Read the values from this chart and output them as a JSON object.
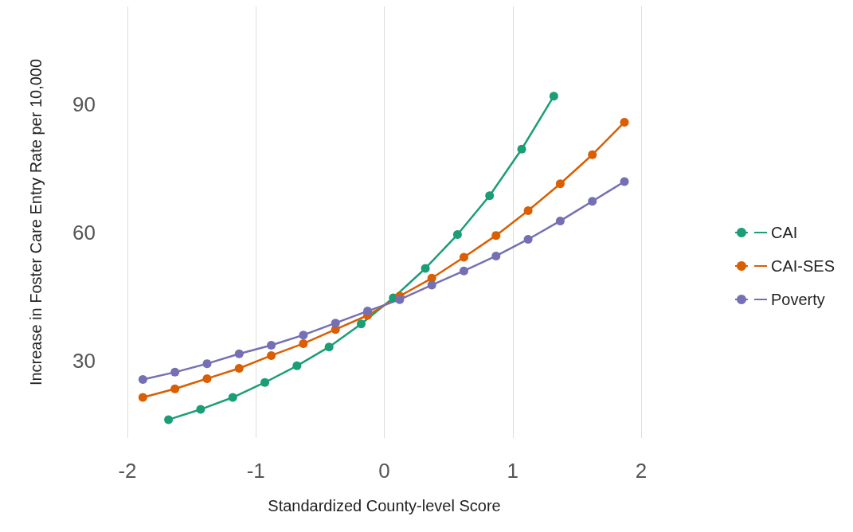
{
  "chart_data": {
    "type": "line",
    "xlabel": "Standardized County-level Score",
    "ylabel": "Increase in Foster Care Entry Rate per 10,000",
    "xlim": [
      -2,
      2
    ],
    "xticks": [
      -2,
      -1,
      0,
      1,
      2
    ],
    "ylim": [
      12,
      113
    ],
    "yticks": [
      30,
      60,
      90
    ],
    "grid": "x",
    "legend": "right",
    "marker": "circle",
    "line_style": "solid",
    "series": [
      {
        "name": "CAI",
        "color": "#1b9e77",
        "x": [
          -1.68,
          -1.43,
          -1.18,
          -0.93,
          -0.68,
          -0.43,
          -0.18,
          0.07,
          0.32,
          0.57,
          0.82,
          1.07,
          1.32
        ],
        "values": [
          16.3,
          18.7,
          21.5,
          25.0,
          28.9,
          33.3,
          38.7,
          44.8,
          51.7,
          59.6,
          68.7,
          79.6,
          92.0
        ]
      },
      {
        "name": "CAI-SES",
        "color": "#d95f02",
        "x": [
          -1.88,
          -1.63,
          -1.38,
          -1.13,
          -0.88,
          -0.63,
          -0.38,
          -0.13,
          0.12,
          0.37,
          0.62,
          0.87,
          1.12,
          1.37,
          1.62,
          1.87
        ],
        "values": [
          21.5,
          23.5,
          25.9,
          28.3,
          31.3,
          34.1,
          37.4,
          40.7,
          45.2,
          49.4,
          54.3,
          59.4,
          65.2,
          71.5,
          78.3,
          85.9
        ]
      },
      {
        "name": "Poverty",
        "color": "#7570b3",
        "x": [
          -1.88,
          -1.63,
          -1.38,
          -1.13,
          -0.88,
          -0.63,
          -0.38,
          -0.13,
          0.12,
          0.37,
          0.62,
          0.87,
          1.12,
          1.37,
          1.62,
          1.87
        ],
        "values": [
          25.7,
          27.4,
          29.4,
          31.7,
          33.7,
          36.1,
          38.9,
          41.7,
          44.4,
          47.8,
          51.1,
          54.6,
          58.5,
          62.8,
          67.4,
          72.0
        ]
      }
    ]
  }
}
